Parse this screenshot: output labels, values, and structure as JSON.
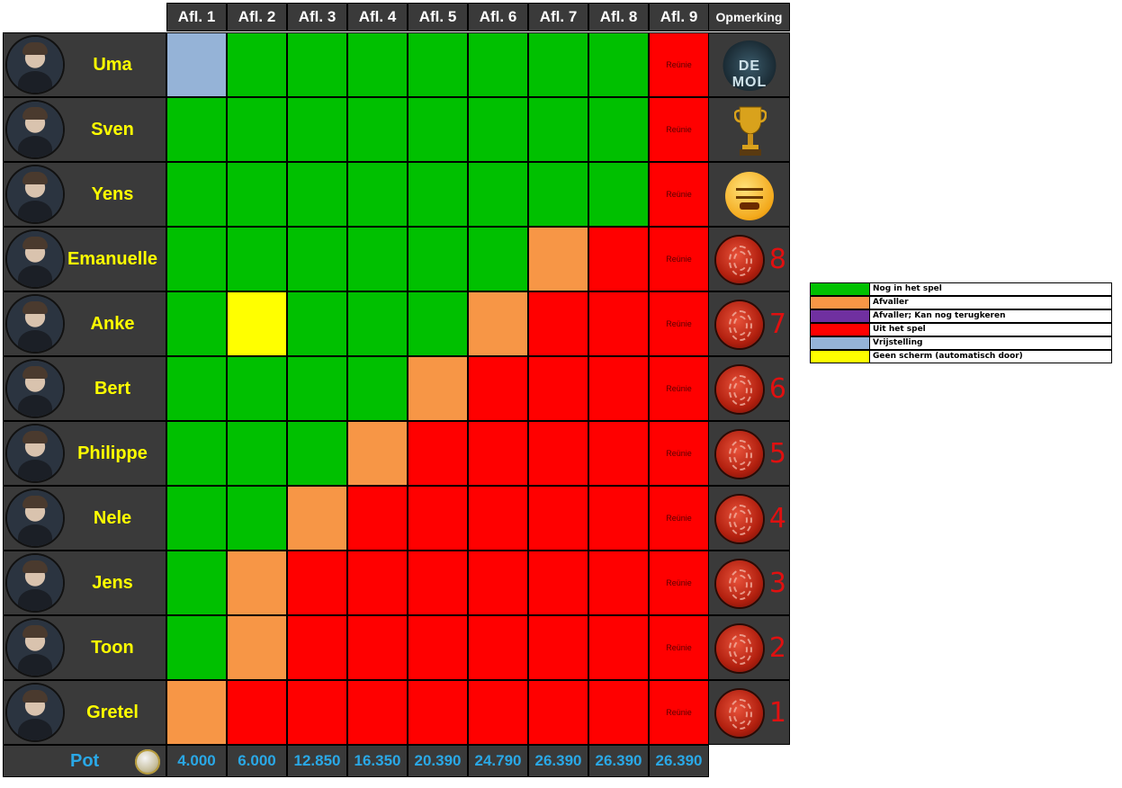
{
  "colors": {
    "green": "#00c000",
    "orange": "#f79646",
    "purple": "#7030a0",
    "red": "#ff0000",
    "blue": "#95b3d7",
    "yellow": "#ffff00"
  },
  "header": {
    "episodes": [
      "Afl. 1",
      "Afl. 2",
      "Afl. 3",
      "Afl. 4",
      "Afl. 5",
      "Afl. 6",
      "Afl. 7",
      "Afl. 8",
      "Afl. 9"
    ],
    "opmerking": "Opmerking"
  },
  "reunie_label": "Reünie",
  "players": [
    {
      "name": "Uma",
      "status": [
        "blue",
        "green",
        "green",
        "green",
        "green",
        "green",
        "green",
        "green",
        "red"
      ],
      "remark": {
        "type": "mol",
        "text": "DE MOL"
      }
    },
    {
      "name": "Sven",
      "status": [
        "green",
        "green",
        "green",
        "green",
        "green",
        "green",
        "green",
        "green",
        "red"
      ],
      "remark": {
        "type": "trophy"
      }
    },
    {
      "name": "Yens",
      "status": [
        "green",
        "green",
        "green",
        "green",
        "green",
        "green",
        "green",
        "green",
        "red"
      ],
      "remark": {
        "type": "angry"
      }
    },
    {
      "name": "Emanuelle",
      "status": [
        "green",
        "green",
        "green",
        "green",
        "green",
        "green",
        "orange",
        "red",
        "red"
      ],
      "remark": {
        "type": "fingerprint",
        "rank": "8"
      }
    },
    {
      "name": "Anke",
      "status": [
        "green",
        "yellow",
        "green",
        "green",
        "green",
        "orange",
        "red",
        "red",
        "red"
      ],
      "remark": {
        "type": "fingerprint",
        "rank": "7"
      }
    },
    {
      "name": "Bert",
      "status": [
        "green",
        "green",
        "green",
        "green",
        "orange",
        "red",
        "red",
        "red",
        "red"
      ],
      "remark": {
        "type": "fingerprint",
        "rank": "6"
      }
    },
    {
      "name": "Philippe",
      "status": [
        "green",
        "green",
        "green",
        "orange",
        "red",
        "red",
        "red",
        "red",
        "red"
      ],
      "remark": {
        "type": "fingerprint",
        "rank": "5"
      }
    },
    {
      "name": "Nele",
      "status": [
        "green",
        "green",
        "orange",
        "red",
        "red",
        "red",
        "red",
        "red",
        "red"
      ],
      "remark": {
        "type": "fingerprint",
        "rank": "4"
      }
    },
    {
      "name": "Jens",
      "status": [
        "green",
        "orange",
        "red",
        "red",
        "red",
        "red",
        "red",
        "red",
        "red"
      ],
      "remark": {
        "type": "fingerprint",
        "rank": "3"
      }
    },
    {
      "name": "Toon",
      "status": [
        "green",
        "orange",
        "red",
        "red",
        "red",
        "red",
        "red",
        "red",
        "red"
      ],
      "remark": {
        "type": "fingerprint",
        "rank": "2"
      }
    },
    {
      "name": "Gretel",
      "status": [
        "orange",
        "red",
        "red",
        "red",
        "red",
        "red",
        "red",
        "red",
        "red"
      ],
      "remark": {
        "type": "fingerprint",
        "rank": "1"
      }
    }
  ],
  "pot": {
    "label": "Pot",
    "values": [
      "4.000",
      "6.000",
      "12.850",
      "16.350",
      "20.390",
      "24.790",
      "26.390",
      "26.390",
      "26.390"
    ]
  },
  "legend": [
    {
      "color": "green",
      "label": "Nog in het spel"
    },
    {
      "color": "orange",
      "label": "Afvaller"
    },
    {
      "color": "purple",
      "label": "Afvaller; Kan nog terugkeren"
    },
    {
      "color": "red",
      "label": "Uit het spel"
    },
    {
      "color": "blue",
      "label": "Vrijstelling"
    },
    {
      "color": "yellow",
      "label": "Geen scherm (automatisch door)"
    }
  ]
}
